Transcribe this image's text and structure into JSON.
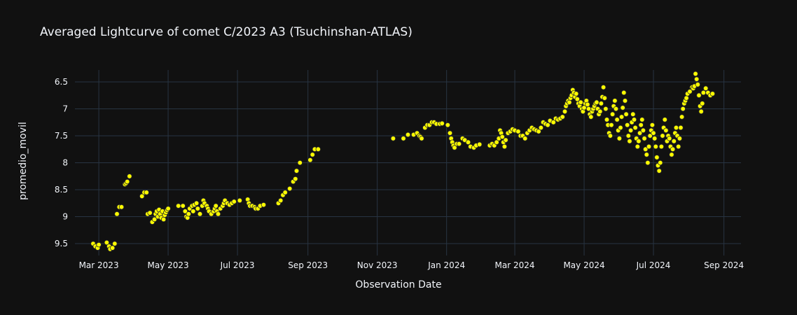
{
  "chart_data": {
    "type": "scatter",
    "title": "Averaged Lightcurve of comet C/2023 A3 (Tsuchinshan-ATLAS)",
    "xlabel": "Observation Date",
    "ylabel": "promedio_movil",
    "x_ticks": [
      {
        "date": "2023-03-01",
        "label": "Mar 2023"
      },
      {
        "date": "2023-05-01",
        "label": "May 2023"
      },
      {
        "date": "2023-07-01",
        "label": "Jul 2023"
      },
      {
        "date": "2023-09-01",
        "label": "Sep 2023"
      },
      {
        "date": "2023-11-01",
        "label": "Nov 2023"
      },
      {
        "date": "2024-01-01",
        "label": "Jan 2024"
      },
      {
        "date": "2024-03-01",
        "label": "Mar 2024"
      },
      {
        "date": "2024-05-01",
        "label": "May 2024"
      },
      {
        "date": "2024-07-01",
        "label": "Jul 2024"
      },
      {
        "date": "2024-09-01",
        "label": "Sep 2024"
      }
    ],
    "xlim": [
      "2023-02-08",
      "2024-09-16"
    ],
    "y_ticks": [
      6.5,
      7,
      7.5,
      8,
      8.5,
      9,
      9.5
    ],
    "y_tick_labels": [
      "6.5",
      "7",
      "7.5",
      "8",
      "8.5",
      "9",
      "9.5"
    ],
    "ylim": [
      9.72,
      6.28
    ],
    "y_reversed": true,
    "grid": true,
    "marker_color": "#ffff00",
    "background": "#111111",
    "grid_color": "#283442",
    "points": [
      [
        "2023-02-24",
        9.5
      ],
      [
        "2023-02-26",
        9.55
      ],
      [
        "2023-02-28",
        9.58
      ],
      [
        "2023-03-01",
        9.52
      ],
      [
        "2023-03-08",
        9.48
      ],
      [
        "2023-03-10",
        9.55
      ],
      [
        "2023-03-11",
        9.6
      ],
      [
        "2023-03-13",
        9.58
      ],
      [
        "2023-03-15",
        9.5
      ],
      [
        "2023-03-17",
        8.95
      ],
      [
        "2023-03-19",
        8.82
      ],
      [
        "2023-03-21",
        8.82
      ],
      [
        "2023-03-24",
        8.4
      ],
      [
        "2023-03-25",
        8.38
      ],
      [
        "2023-03-26",
        8.35
      ],
      [
        "2023-03-28",
        8.25
      ],
      [
        "2023-04-08",
        8.62
      ],
      [
        "2023-04-10",
        8.55
      ],
      [
        "2023-04-12",
        8.55
      ],
      [
        "2023-04-13",
        8.95
      ],
      [
        "2023-04-15",
        8.93
      ],
      [
        "2023-04-17",
        9.1
      ],
      [
        "2023-04-19",
        9.05
      ],
      [
        "2023-04-20",
        8.95
      ],
      [
        "2023-04-21",
        8.9
      ],
      [
        "2023-04-22",
        9.0
      ],
      [
        "2023-04-23",
        8.87
      ],
      [
        "2023-04-24",
        8.95
      ],
      [
        "2023-04-25",
        9.02
      ],
      [
        "2023-04-26",
        8.9
      ],
      [
        "2023-04-27",
        9.05
      ],
      [
        "2023-04-28",
        8.97
      ],
      [
        "2023-04-29",
        8.92
      ],
      [
        "2023-04-30",
        8.88
      ],
      [
        "2023-05-01",
        8.85
      ],
      [
        "2023-05-10",
        8.8
      ],
      [
        "2023-05-14",
        8.8
      ],
      [
        "2023-05-16",
        8.9
      ],
      [
        "2023-05-17",
        9.0
      ],
      [
        "2023-05-18",
        9.02
      ],
      [
        "2023-05-19",
        8.95
      ],
      [
        "2023-05-20",
        8.85
      ],
      [
        "2023-05-22",
        8.8
      ],
      [
        "2023-05-23",
        8.9
      ],
      [
        "2023-05-24",
        8.78
      ],
      [
        "2023-05-26",
        8.75
      ],
      [
        "2023-05-27",
        8.85
      ],
      [
        "2023-05-29",
        8.95
      ],
      [
        "2023-05-31",
        8.8
      ],
      [
        "2023-06-01",
        8.7
      ],
      [
        "2023-06-02",
        8.75
      ],
      [
        "2023-06-04",
        8.8
      ],
      [
        "2023-06-05",
        8.85
      ],
      [
        "2023-06-06",
        8.9
      ],
      [
        "2023-06-08",
        8.95
      ],
      [
        "2023-06-10",
        8.9
      ],
      [
        "2023-06-11",
        8.85
      ],
      [
        "2023-06-12",
        8.8
      ],
      [
        "2023-06-13",
        8.9
      ],
      [
        "2023-06-14",
        8.95
      ],
      [
        "2023-06-16",
        8.85
      ],
      [
        "2023-06-18",
        8.8
      ],
      [
        "2023-06-19",
        8.75
      ],
      [
        "2023-06-20",
        8.7
      ],
      [
        "2023-06-22",
        8.75
      ],
      [
        "2023-06-24",
        8.78
      ],
      [
        "2023-06-26",
        8.75
      ],
      [
        "2023-06-28",
        8.72
      ],
      [
        "2023-07-03",
        8.7
      ],
      [
        "2023-07-10",
        8.68
      ],
      [
        "2023-07-11",
        8.75
      ],
      [
        "2023-07-12",
        8.8
      ],
      [
        "2023-07-14",
        8.8
      ],
      [
        "2023-07-16",
        8.82
      ],
      [
        "2023-07-17",
        8.85
      ],
      [
        "2023-07-19",
        8.85
      ],
      [
        "2023-07-21",
        8.8
      ],
      [
        "2023-07-24",
        8.78
      ],
      [
        "2023-08-06",
        8.75
      ],
      [
        "2023-08-08",
        8.7
      ],
      [
        "2023-08-10",
        8.6
      ],
      [
        "2023-08-12",
        8.55
      ],
      [
        "2023-08-16",
        8.48
      ],
      [
        "2023-08-19",
        8.35
      ],
      [
        "2023-08-21",
        8.3
      ],
      [
        "2023-08-22",
        8.15
      ],
      [
        "2023-08-25",
        8.0
      ],
      [
        "2023-09-03",
        7.95
      ],
      [
        "2023-09-05",
        7.85
      ],
      [
        "2023-09-07",
        7.75
      ],
      [
        "2023-09-10",
        7.75
      ],
      [
        "2023-11-15",
        7.55
      ],
      [
        "2023-11-24",
        7.55
      ],
      [
        "2023-11-28",
        7.48
      ],
      [
        "2023-12-03",
        7.48
      ],
      [
        "2023-12-06",
        7.45
      ],
      [
        "2023-12-08",
        7.5
      ],
      [
        "2023-12-09",
        7.52
      ],
      [
        "2023-12-10",
        7.55
      ],
      [
        "2023-12-13",
        7.35
      ],
      [
        "2023-12-15",
        7.3
      ],
      [
        "2023-12-17",
        7.3
      ],
      [
        "2023-12-19",
        7.25
      ],
      [
        "2023-12-21",
        7.25
      ],
      [
        "2023-12-23",
        7.28
      ],
      [
        "2023-12-26",
        7.28
      ],
      [
        "2023-12-28",
        7.27
      ],
      [
        "2024-01-02",
        7.3
      ],
      [
        "2024-01-04",
        7.45
      ],
      [
        "2024-01-05",
        7.55
      ],
      [
        "2024-01-06",
        7.62
      ],
      [
        "2024-01-07",
        7.68
      ],
      [
        "2024-01-08",
        7.72
      ],
      [
        "2024-01-10",
        7.65
      ],
      [
        "2024-01-12",
        7.65
      ],
      [
        "2024-01-15",
        7.55
      ],
      [
        "2024-01-17",
        7.58
      ],
      [
        "2024-01-20",
        7.62
      ],
      [
        "2024-01-22",
        7.7
      ],
      [
        "2024-01-25",
        7.72
      ],
      [
        "2024-01-27",
        7.68
      ],
      [
        "2024-01-30",
        7.66
      ],
      [
        "2024-02-08",
        7.68
      ],
      [
        "2024-02-10",
        7.65
      ],
      [
        "2024-02-12",
        7.68
      ],
      [
        "2024-02-14",
        7.62
      ],
      [
        "2024-02-16",
        7.55
      ],
      [
        "2024-02-17",
        7.4
      ],
      [
        "2024-02-18",
        7.45
      ],
      [
        "2024-02-19",
        7.52
      ],
      [
        "2024-02-20",
        7.62
      ],
      [
        "2024-02-21",
        7.7
      ],
      [
        "2024-02-22",
        7.58
      ],
      [
        "2024-02-24",
        7.45
      ],
      [
        "2024-02-26",
        7.42
      ],
      [
        "2024-02-28",
        7.38
      ],
      [
        "2024-03-01",
        7.4
      ],
      [
        "2024-03-04",
        7.42
      ],
      [
        "2024-03-06",
        7.5
      ],
      [
        "2024-03-08",
        7.5
      ],
      [
        "2024-03-10",
        7.55
      ],
      [
        "2024-03-12",
        7.45
      ],
      [
        "2024-03-14",
        7.4
      ],
      [
        "2024-03-16",
        7.35
      ],
      [
        "2024-03-18",
        7.38
      ],
      [
        "2024-03-20",
        7.4
      ],
      [
        "2024-03-22",
        7.42
      ],
      [
        "2024-03-24",
        7.35
      ],
      [
        "2024-03-26",
        7.25
      ],
      [
        "2024-03-28",
        7.28
      ],
      [
        "2024-03-30",
        7.3
      ],
      [
        "2024-04-01",
        7.22
      ],
      [
        "2024-04-04",
        7.25
      ],
      [
        "2024-04-06",
        7.18
      ],
      [
        "2024-04-08",
        7.2
      ],
      [
        "2024-04-10",
        7.18
      ],
      [
        "2024-04-12",
        7.15
      ],
      [
        "2024-04-14",
        7.05
      ],
      [
        "2024-04-15",
        6.95
      ],
      [
        "2024-04-16",
        6.9
      ],
      [
        "2024-04-17",
        6.85
      ],
      [
        "2024-04-18",
        6.88
      ],
      [
        "2024-04-19",
        6.8
      ],
      [
        "2024-04-20",
        6.75
      ],
      [
        "2024-04-21",
        6.65
      ],
      [
        "2024-04-22",
        6.7
      ],
      [
        "2024-04-23",
        6.78
      ],
      [
        "2024-04-24",
        6.72
      ],
      [
        "2024-04-25",
        6.82
      ],
      [
        "2024-04-26",
        6.9
      ],
      [
        "2024-04-27",
        6.95
      ],
      [
        "2024-04-28",
        6.88
      ],
      [
        "2024-04-29",
        7.0
      ],
      [
        "2024-04-30",
        7.05
      ],
      [
        "2024-05-01",
        6.98
      ],
      [
        "2024-05-02",
        6.9
      ],
      [
        "2024-05-03",
        6.85
      ],
      [
        "2024-05-04",
        6.92
      ],
      [
        "2024-05-05",
        7.0
      ],
      [
        "2024-05-06",
        7.1
      ],
      [
        "2024-05-07",
        7.15
      ],
      [
        "2024-05-08",
        7.05
      ],
      [
        "2024-05-09",
        7.0
      ],
      [
        "2024-05-10",
        6.95
      ],
      [
        "2024-05-11",
        6.9
      ],
      [
        "2024-05-12",
        6.88
      ],
      [
        "2024-05-13",
        7.0
      ],
      [
        "2024-05-14",
        7.1
      ],
      [
        "2024-05-15",
        7.05
      ],
      [
        "2024-05-16",
        6.9
      ],
      [
        "2024-05-17",
        6.78
      ],
      [
        "2024-05-18",
        6.6
      ],
      [
        "2024-05-19",
        6.8
      ],
      [
        "2024-05-20",
        7.0
      ],
      [
        "2024-05-21",
        7.2
      ],
      [
        "2024-05-22",
        7.3
      ],
      [
        "2024-05-23",
        7.45
      ],
      [
        "2024-05-24",
        7.5
      ],
      [
        "2024-05-25",
        7.3
      ],
      [
        "2024-05-26",
        7.1
      ],
      [
        "2024-05-27",
        6.95
      ],
      [
        "2024-05-28",
        6.85
      ],
      [
        "2024-05-29",
        7.0
      ],
      [
        "2024-05-30",
        7.2
      ],
      [
        "2024-05-31",
        7.4
      ],
      [
        "2024-06-01",
        7.55
      ],
      [
        "2024-06-02",
        7.35
      ],
      [
        "2024-06-03",
        7.15
      ],
      [
        "2024-06-04",
        6.98
      ],
      [
        "2024-06-05",
        6.7
      ],
      [
        "2024-06-06",
        6.85
      ],
      [
        "2024-06-07",
        7.1
      ],
      [
        "2024-06-08",
        7.3
      ],
      [
        "2024-06-09",
        7.5
      ],
      [
        "2024-06-10",
        7.6
      ],
      [
        "2024-06-11",
        7.4
      ],
      [
        "2024-06-12",
        7.25
      ],
      [
        "2024-06-13",
        7.1
      ],
      [
        "2024-06-14",
        7.2
      ],
      [
        "2024-06-15",
        7.35
      ],
      [
        "2024-06-16",
        7.55
      ],
      [
        "2024-06-17",
        7.7
      ],
      [
        "2024-06-18",
        7.6
      ],
      [
        "2024-06-19",
        7.45
      ],
      [
        "2024-06-20",
        7.3
      ],
      [
        "2024-06-21",
        7.2
      ],
      [
        "2024-06-22",
        7.4
      ],
      [
        "2024-06-23",
        7.55
      ],
      [
        "2024-06-24",
        7.75
      ],
      [
        "2024-06-25",
        7.85
      ],
      [
        "2024-06-26",
        8.0
      ],
      [
        "2024-06-27",
        7.7
      ],
      [
        "2024-06-28",
        7.5
      ],
      [
        "2024-06-29",
        7.4
      ],
      [
        "2024-06-30",
        7.3
      ],
      [
        "2024-07-01",
        7.45
      ],
      [
        "2024-07-02",
        7.55
      ],
      [
        "2024-07-03",
        7.7
      ],
      [
        "2024-07-04",
        7.9
      ],
      [
        "2024-07-05",
        8.05
      ],
      [
        "2024-07-06",
        8.15
      ],
      [
        "2024-07-07",
        8.0
      ],
      [
        "2024-07-08",
        7.7
      ],
      [
        "2024-07-09",
        7.5
      ],
      [
        "2024-07-10",
        7.35
      ],
      [
        "2024-07-11",
        7.2
      ],
      [
        "2024-07-12",
        7.4
      ],
      [
        "2024-07-13",
        7.6
      ],
      [
        "2024-07-14",
        7.5
      ],
      [
        "2024-07-15",
        7.55
      ],
      [
        "2024-07-16",
        7.7
      ],
      [
        "2024-07-17",
        7.85
      ],
      [
        "2024-07-18",
        7.75
      ],
      [
        "2024-07-19",
        7.6
      ],
      [
        "2024-07-20",
        7.45
      ],
      [
        "2024-07-21",
        7.35
      ],
      [
        "2024-07-22",
        7.5
      ],
      [
        "2024-07-23",
        7.7
      ],
      [
        "2024-07-24",
        7.55
      ],
      [
        "2024-07-25",
        7.35
      ],
      [
        "2024-07-26",
        7.15
      ],
      [
        "2024-07-27",
        7.0
      ],
      [
        "2024-07-28",
        6.9
      ],
      [
        "2024-07-29",
        6.85
      ],
      [
        "2024-07-30",
        6.8
      ],
      [
        "2024-07-31",
        6.72
      ],
      [
        "2024-08-02",
        6.68
      ],
      [
        "2024-08-04",
        6.6
      ],
      [
        "2024-08-05",
        6.62
      ],
      [
        "2024-08-06",
        6.58
      ],
      [
        "2024-08-07",
        6.35
      ],
      [
        "2024-08-08",
        6.45
      ],
      [
        "2024-08-09",
        6.55
      ],
      [
        "2024-08-10",
        6.75
      ],
      [
        "2024-08-11",
        6.95
      ],
      [
        "2024-08-12",
        7.05
      ],
      [
        "2024-08-13",
        6.9
      ],
      [
        "2024-08-14",
        6.7
      ],
      [
        "2024-08-16",
        6.62
      ],
      [
        "2024-08-18",
        6.7
      ],
      [
        "2024-08-20",
        6.75
      ],
      [
        "2024-08-22",
        6.72
      ]
    ]
  }
}
